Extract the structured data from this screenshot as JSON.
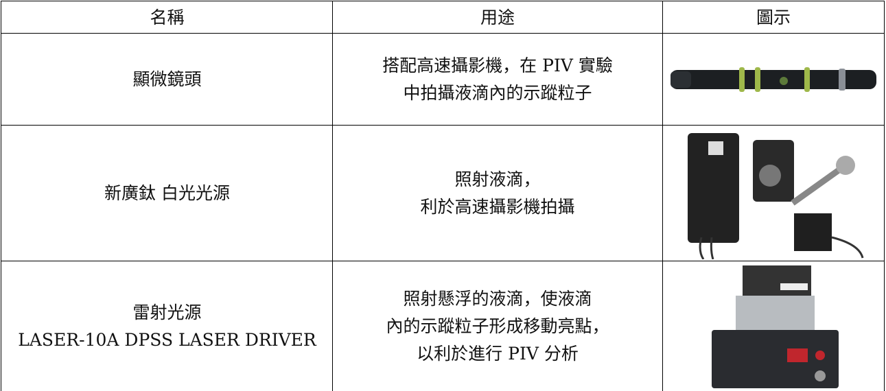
{
  "table": {
    "header": [
      "名稱",
      "用途",
      "圖示"
    ],
    "rows": [
      {
        "name": [
          "顯微鏡頭"
        ],
        "use": [
          "搭配高速攝影機，在 PIV 實驗",
          "中拍攝液滴內的示蹤粒子"
        ]
      },
      {
        "name": [
          "新廣鈦 白光光源"
        ],
        "use": [
          "照射液滴，",
          "利於高速攝影機拍攝"
        ]
      },
      {
        "name": [
          "雷射光源",
          "LASER-10A DPSS LASER DRIVER"
        ],
        "use": [
          "照射懸浮的液滴，使液滴",
          "內的示蹤粒子形成移動亮點，",
          "以利於進行 PIV 分析"
        ]
      }
    ]
  }
}
